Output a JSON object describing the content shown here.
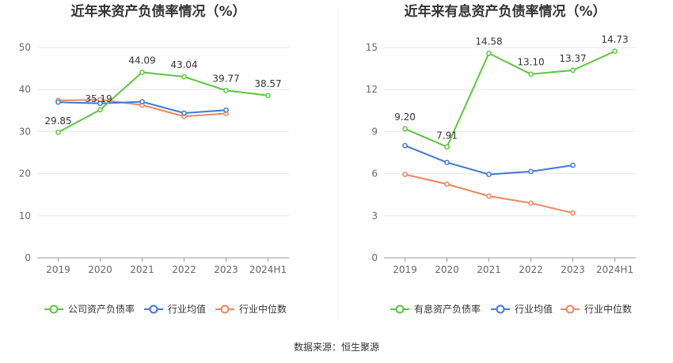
{
  "source_text": "数据来源：恒生聚源",
  "chart_data": [
    {
      "type": "line",
      "title": "近年来资产负债率情况（%）",
      "categories": [
        "2019",
        "2020",
        "2021",
        "2022",
        "2023",
        "2024H1"
      ],
      "ylim": [
        0,
        50
      ],
      "yticks": [
        0,
        10,
        20,
        30,
        40,
        50
      ],
      "grid": true,
      "legend_position": "bottom",
      "series": [
        {
          "name": "公司资产负债率",
          "color": "#5ac73a",
          "values": [
            29.85,
            35.19,
            44.09,
            43.04,
            39.77,
            38.57
          ],
          "labels": [
            "29.85",
            "35.19",
            "44.09",
            "43.04",
            "39.77",
            "38.57"
          ]
        },
        {
          "name": "行业均值",
          "color": "#3f78d8",
          "values": [
            37.0,
            36.7,
            37.1,
            34.4,
            35.1,
            null
          ]
        },
        {
          "name": "行业中位数",
          "color": "#f0855a",
          "values": [
            37.4,
            37.6,
            36.3,
            33.6,
            34.3,
            null
          ]
        }
      ]
    },
    {
      "type": "line",
      "title": "近年来有息资产负债率情况（%）",
      "categories": [
        "2019",
        "2020",
        "2021",
        "2022",
        "2023",
        "2024H1"
      ],
      "ylim": [
        0,
        15
      ],
      "yticks": [
        0,
        3,
        6,
        9,
        12,
        15
      ],
      "grid": true,
      "legend_position": "bottom",
      "series": [
        {
          "name": "有息资产负债率",
          "color": "#5ac73a",
          "values": [
            9.2,
            7.91,
            14.58,
            13.1,
            13.37,
            14.73
          ],
          "labels": [
            "9.20",
            "7.91",
            "14.58",
            "13.10",
            "13.37",
            "14.73"
          ]
        },
        {
          "name": "行业均值",
          "color": "#3f78d8",
          "values": [
            8.0,
            6.8,
            5.95,
            6.15,
            6.6,
            null
          ]
        },
        {
          "name": "行业中位数",
          "color": "#f0855a",
          "values": [
            5.95,
            5.25,
            4.4,
            3.9,
            3.2,
            null
          ]
        }
      ]
    }
  ]
}
